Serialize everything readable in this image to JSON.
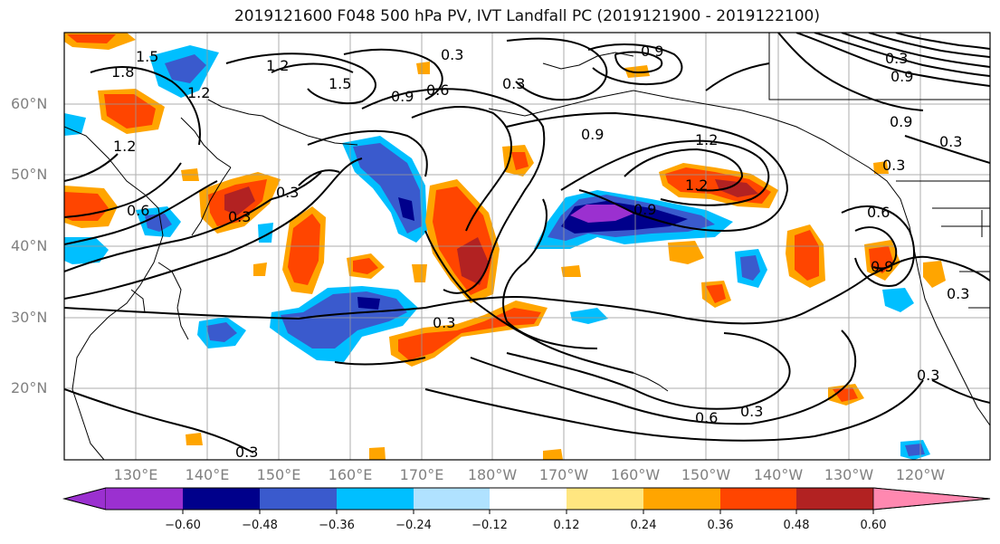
{
  "title": "2019121600 F048 500 hPa PV, IVT Landfall PC (2019121900 - 2019122100)",
  "lat_labels": [
    "60°N",
    "50°N",
    "40°N",
    "30°N",
    "20°N"
  ],
  "lon_labels": [
    "130°E",
    "140°E",
    "150°E",
    "160°E",
    "170°E",
    "180°W",
    "170°W",
    "160°W",
    "150°W",
    "140°W",
    "130°W",
    "120°W"
  ],
  "contour_labels": [
    "1.8",
    "1.5",
    "1.2",
    "1.2",
    "1.5",
    "0.3",
    "0.9",
    "0.6",
    "0.3",
    "0.9",
    "0.9",
    "1.2",
    "0.9",
    "0.3",
    "1.2",
    "0.9",
    "0.9",
    "0.3",
    "0.6",
    "0.3",
    "0.6",
    "0.3",
    "0.3",
    "0.6",
    "0.3",
    "0.3",
    "0.3",
    "0.9",
    "1.2",
    "0.3",
    "0.3"
  ],
  "colorbar": {
    "ticks": [
      "−0.60",
      "−0.48",
      "−0.36",
      "−0.24",
      "−0.12",
      "0.12",
      "0.24",
      "0.36",
      "0.48",
      "0.60"
    ],
    "colors": [
      "#9b30d0",
      "#00008b",
      "#3a5acd",
      "#00bfff",
      "#b0e2ff",
      "#ffffff",
      "#ffe680",
      "#ffa500",
      "#ff4500",
      "#b22222",
      "#ff88b0"
    ]
  }
}
